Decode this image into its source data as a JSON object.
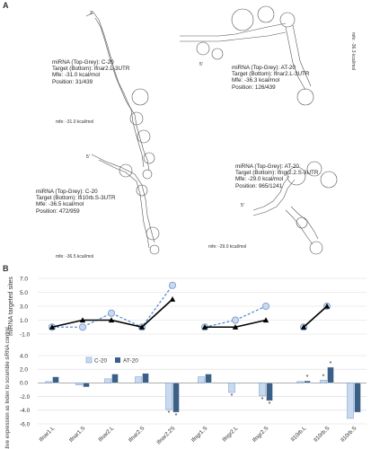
{
  "panel_a": {
    "label": "A",
    "structures": [
      {
        "lines": [
          "miRNA (Top-Grey): C-20",
          "Target (Bottom): lfnar2.L-3UTR",
          "Mfe: -31.0 kcal/mol",
          "Position: 31/439"
        ],
        "mfe_label": "mfe: -31.0 kcal/mol",
        "end_label": "3'"
      },
      {
        "lines": [
          "miRNA (Top-Grey): AT-20",
          "Target (Bottom): lfnar2.L-3UTR",
          "Mfe: -36.3 kcal/mol",
          "Position: 126/439"
        ],
        "mfe_label": "mfe: -36.3 kcal/mol",
        "end_label": "5'"
      },
      {
        "lines": [
          "miRNA (Top-Grey): C-20",
          "Target (Bottom): lfi10rb.S-3UTR",
          "Mfe: -36.5 kcal/mol",
          "Position: 472/959"
        ],
        "mfe_label": "mfe: -36.5 kcal/mol",
        "end_label": "5'"
      },
      {
        "lines": [
          "miRNA (Top-Grey): AT-20",
          "Target (Bottom): lfngr2.2.S-3UTR",
          "Mfe: -29.0 kcal/mol",
          "Position: 965/1241"
        ],
        "mfe_label": "mfe: -29.0 kcal/mol",
        "end_label": "5'"
      }
    ]
  },
  "panel_b": {
    "label": "B"
  },
  "colors": {
    "c20": "#c9daf0",
    "c20_edge": "#6f95c8",
    "at20": "#3b5f86",
    "dashed_line": "#5b8ed6",
    "solid_line": "#000000",
    "grid": "#d9d9d9",
    "structure": "#555555"
  },
  "chart_data": [
    {
      "type": "line",
      "ylabel": "miRNA targeted sites",
      "yticks": [
        "7.0",
        "5.0",
        "3.0",
        "1.0",
        "-1.0"
      ],
      "ylim": [
        -1,
        7
      ],
      "series": [
        {
          "name": "C-20",
          "style": "dashed, light-blue circle markers",
          "groups": [
            [
              0,
              0,
              2,
              0,
              6
            ],
            [
              0,
              1,
              3
            ],
            [
              0,
              3
            ]
          ]
        },
        {
          "name": "AT-20",
          "style": "solid black, triangle markers",
          "groups": [
            [
              0,
              1,
              1,
              0,
              4
            ],
            [
              0,
              0,
              1
            ],
            [
              0,
              3
            ]
          ]
        }
      ]
    },
    {
      "type": "bar",
      "ylabel": "Relative expression as Index to scramble siRNA control",
      "yticks": [
        "4.0",
        "2.0",
        "0.0",
        "-2.0",
        "-4.0",
        "-6.0"
      ],
      "ylim": [
        -6,
        4
      ],
      "legend": {
        "position": "top-left",
        "entries": [
          "C-20",
          "AT-20"
        ]
      },
      "categories": [
        "Ifnar1.L",
        "Ifnar1.S",
        "Ifnar2.L",
        "Ifnar2.S",
        "Ifnar2.2S",
        "Ifngr1.S",
        "Ifngr2.L",
        "Ifngr2.S",
        "Il10rb.L",
        "Il10rb.S",
        "Il10rb.S"
      ],
      "series": [
        {
          "name": "C-20",
          "values": [
            0.2,
            -0.3,
            0.6,
            0.9,
            -3.9,
            0.9,
            -1.4,
            -1.9,
            0.2,
            0.4,
            -5.2
          ]
        },
        {
          "name": "AT-20",
          "values": [
            0.9,
            -0.6,
            1.3,
            1.4,
            -4.3,
            1.3,
            -0.1,
            -2.6,
            0.3,
            2.3,
            -4.3
          ]
        }
      ],
      "significance_marks": [
        {
          "category": "Ifnar2.2S",
          "series": "C-20",
          "text": "*"
        },
        {
          "category": "Ifnar2.2S",
          "series": "AT-20",
          "text": "*"
        },
        {
          "category": "Ifngr2.L",
          "series": "C-20",
          "text": "*"
        },
        {
          "category": "Ifngr2.S",
          "series": "C-20",
          "text": "*"
        },
        {
          "category": "Ifngr2.S",
          "series": "AT-20",
          "text": "*"
        },
        {
          "category": "Il10rb.L",
          "series": "AT-20",
          "text": "*"
        },
        {
          "category": "Il10rb.S",
          "series": "C-20",
          "text": "*"
        },
        {
          "category": "Il10rb.S",
          "series": "AT-20",
          "text": "*"
        }
      ]
    }
  ]
}
